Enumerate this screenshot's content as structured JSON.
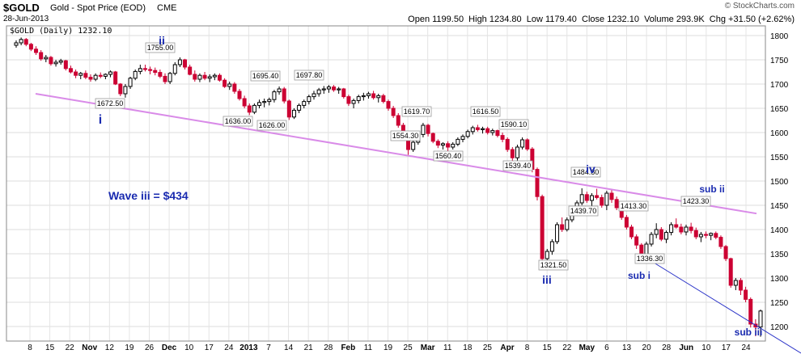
{
  "header": {
    "symbol": "$GOLD",
    "description": "Gold - Spot Price (EOD)",
    "exchange": "CME",
    "date": "28-Jun-2013",
    "ohlc_text": "Open 1199.50  High 1234.80  Low 1179.40  Close 1232.10  Volume 293.9K  Chg +31.50 (+2.62%)",
    "legend_text": "$GOLD (Daily) 1232.10",
    "watermark": "© StockCharts.com"
  },
  "colors": {
    "up": "#000000",
    "down": "#cc0033",
    "trendline": "#d98be8",
    "channel": "#2a33c8",
    "wave_label": "#1a2bb0"
  },
  "chart_data": {
    "type": "candlestick",
    "ylim": [
      1170,
      1820
    ],
    "y_ticks": [
      1200,
      1250,
      1300,
      1350,
      1400,
      1450,
      1500,
      1550,
      1600,
      1650,
      1700,
      1750,
      1800
    ],
    "x_labels": [
      "8",
      "15",
      "22",
      "Nov",
      "12",
      "19",
      "26",
      "Dec",
      "10",
      "17",
      "24",
      "2013",
      "7",
      "14",
      "21",
      "28",
      "Feb",
      "11",
      "19",
      "25",
      "Mar",
      "11",
      "18",
      "25",
      "Apr",
      "8",
      "15",
      "22",
      "May",
      "6",
      "13",
      "20",
      "28",
      "Jun",
      "10",
      "17",
      "24"
    ],
    "grid": true,
    "price_labels": [
      "1672.50",
      "1755.00",
      "1636.00",
      "1695.40",
      "1626.00",
      "1697.80",
      "1554.30",
      "1619.70",
      "1560.40",
      "1616.50",
      "1539.40",
      "1590.10",
      "1321.50",
      "1484.80",
      "1439.70",
      "1336.30",
      "1413.30",
      "1423.30"
    ],
    "wave_labels": [
      "i",
      "ii",
      "iii",
      "iv",
      "sub i",
      "sub ii",
      "sub iii"
    ],
    "annotation": "Wave iii = $434",
    "trendlines": [
      {
        "from": [
          "Oct 8",
          1680
        ],
        "to": [
          "Jun 28",
          1433
        ]
      },
      {
        "from": [
          "May 20",
          1340
        ],
        "to": [
          "Jun 28",
          1175
        ]
      }
    ],
    "candles": [
      [
        1780,
        1790,
        1775,
        1785
      ],
      [
        1785,
        1796,
        1780,
        1792
      ],
      [
        1792,
        1795,
        1778,
        1782
      ],
      [
        1782,
        1785,
        1768,
        1772
      ],
      [
        1772,
        1778,
        1760,
        1765
      ],
      [
        1765,
        1770,
        1748,
        1752
      ],
      [
        1752,
        1760,
        1745,
        1755
      ],
      [
        1755,
        1758,
        1738,
        1742
      ],
      [
        1742,
        1750,
        1736,
        1745
      ],
      [
        1745,
        1752,
        1740,
        1748
      ],
      [
        1748,
        1750,
        1728,
        1732
      ],
      [
        1732,
        1738,
        1722,
        1725
      ],
      [
        1725,
        1730,
        1712,
        1718
      ],
      [
        1718,
        1725,
        1710,
        1722
      ],
      [
        1722,
        1728,
        1710,
        1714
      ],
      [
        1714,
        1720,
        1705,
        1710
      ],
      [
        1710,
        1722,
        1706,
        1718
      ],
      [
        1718,
        1724,
        1712,
        1716
      ],
      [
        1716,
        1722,
        1710,
        1720
      ],
      [
        1720,
        1728,
        1714,
        1725
      ],
      [
        1725,
        1727,
        1698,
        1700
      ],
      [
        1700,
        1702,
        1675,
        1680
      ],
      [
        1680,
        1700,
        1672,
        1695
      ],
      [
        1695,
        1715,
        1690,
        1712
      ],
      [
        1712,
        1730,
        1708,
        1726
      ],
      [
        1726,
        1740,
        1720,
        1732
      ],
      [
        1732,
        1740,
        1726,
        1730
      ],
      [
        1730,
        1736,
        1720,
        1728
      ],
      [
        1728,
        1734,
        1718,
        1724
      ],
      [
        1724,
        1730,
        1712,
        1716
      ],
      [
        1716,
        1722,
        1700,
        1705
      ],
      [
        1705,
        1725,
        1700,
        1722
      ],
      [
        1722,
        1745,
        1718,
        1740
      ],
      [
        1740,
        1755,
        1735,
        1750
      ],
      [
        1750,
        1752,
        1730,
        1735
      ],
      [
        1735,
        1740,
        1718,
        1720
      ],
      [
        1720,
        1728,
        1705,
        1710
      ],
      [
        1710,
        1722,
        1704,
        1718
      ],
      [
        1718,
        1725,
        1708,
        1712
      ],
      [
        1712,
        1720,
        1704,
        1715
      ],
      [
        1715,
        1722,
        1708,
        1718
      ],
      [
        1718,
        1722,
        1705,
        1708
      ],
      [
        1708,
        1712,
        1692,
        1695
      ],
      [
        1695,
        1705,
        1688,
        1700
      ],
      [
        1700,
        1704,
        1680,
        1685
      ],
      [
        1685,
        1690,
        1666,
        1670
      ],
      [
        1670,
        1676,
        1650,
        1655
      ],
      [
        1655,
        1660,
        1636,
        1642
      ],
      [
        1642,
        1660,
        1638,
        1656
      ],
      [
        1656,
        1668,
        1650,
        1662
      ],
      [
        1662,
        1670,
        1652,
        1664
      ],
      [
        1664,
        1672,
        1656,
        1668
      ],
      [
        1668,
        1688,
        1662,
        1684
      ],
      [
        1684,
        1695,
        1678,
        1690
      ],
      [
        1690,
        1694,
        1660,
        1665
      ],
      [
        1665,
        1668,
        1626,
        1632
      ],
      [
        1632,
        1650,
        1628,
        1646
      ],
      [
        1646,
        1660,
        1640,
        1656
      ],
      [
        1656,
        1668,
        1650,
        1664
      ],
      [
        1664,
        1678,
        1658,
        1674
      ],
      [
        1674,
        1686,
        1668,
        1680
      ],
      [
        1680,
        1692,
        1674,
        1688
      ],
      [
        1688,
        1696,
        1680,
        1690
      ],
      [
        1690,
        1698,
        1682,
        1694
      ],
      [
        1694,
        1698,
        1684,
        1688
      ],
      [
        1688,
        1694,
        1680,
        1690
      ],
      [
        1690,
        1692,
        1670,
        1674
      ],
      [
        1674,
        1678,
        1655,
        1660
      ],
      [
        1660,
        1670,
        1650,
        1666
      ],
      [
        1666,
        1678,
        1660,
        1674
      ],
      [
        1674,
        1682,
        1666,
        1676
      ],
      [
        1676,
        1684,
        1670,
        1680
      ],
      [
        1680,
        1686,
        1668,
        1672
      ],
      [
        1672,
        1680,
        1662,
        1676
      ],
      [
        1676,
        1680,
        1660,
        1664
      ],
      [
        1664,
        1668,
        1645,
        1650
      ],
      [
        1650,
        1655,
        1630,
        1635
      ],
      [
        1635,
        1640,
        1610,
        1615
      ],
      [
        1615,
        1620,
        1590,
        1595
      ],
      [
        1595,
        1598,
        1554,
        1565
      ],
      [
        1565,
        1585,
        1560,
        1580
      ],
      [
        1580,
        1600,
        1575,
        1596
      ],
      [
        1596,
        1620,
        1590,
        1615
      ],
      [
        1615,
        1618,
        1592,
        1598
      ],
      [
        1598,
        1600,
        1578,
        1582
      ],
      [
        1582,
        1586,
        1568,
        1574
      ],
      [
        1574,
        1580,
        1565,
        1577
      ],
      [
        1577,
        1582,
        1560,
        1570
      ],
      [
        1570,
        1580,
        1565,
        1576
      ],
      [
        1576,
        1590,
        1572,
        1586
      ],
      [
        1586,
        1596,
        1580,
        1592
      ],
      [
        1592,
        1606,
        1588,
        1602
      ],
      [
        1602,
        1614,
        1596,
        1610
      ],
      [
        1610,
        1616,
        1602,
        1606
      ],
      [
        1606,
        1612,
        1598,
        1608
      ],
      [
        1608,
        1612,
        1596,
        1600
      ],
      [
        1600,
        1608,
        1594,
        1604
      ],
      [
        1604,
        1606,
        1590,
        1594
      ],
      [
        1594,
        1600,
        1580,
        1586
      ],
      [
        1586,
        1590,
        1560,
        1565
      ],
      [
        1565,
        1570,
        1540,
        1548
      ],
      [
        1548,
        1575,
        1542,
        1570
      ],
      [
        1570,
        1590,
        1565,
        1585
      ],
      [
        1585,
        1588,
        1562,
        1566
      ],
      [
        1566,
        1570,
        1518,
        1524
      ],
      [
        1524,
        1528,
        1460,
        1468
      ],
      [
        1468,
        1472,
        1330,
        1340
      ],
      [
        1340,
        1360,
        1321,
        1355
      ],
      [
        1355,
        1380,
        1348,
        1375
      ],
      [
        1375,
        1415,
        1370,
        1410
      ],
      [
        1410,
        1425,
        1395,
        1400
      ],
      [
        1400,
        1425,
        1396,
        1420
      ],
      [
        1420,
        1440,
        1415,
        1435
      ],
      [
        1435,
        1460,
        1430,
        1455
      ],
      [
        1455,
        1485,
        1450,
        1472
      ],
      [
        1472,
        1478,
        1455,
        1460
      ],
      [
        1460,
        1475,
        1448,
        1470
      ],
      [
        1470,
        1484,
        1462,
        1466
      ],
      [
        1466,
        1472,
        1445,
        1450
      ],
      [
        1450,
        1480,
        1440,
        1475
      ],
      [
        1475,
        1482,
        1455,
        1462
      ],
      [
        1462,
        1468,
        1440,
        1445
      ],
      [
        1445,
        1450,
        1420,
        1425
      ],
      [
        1425,
        1430,
        1400,
        1405
      ],
      [
        1405,
        1410,
        1380,
        1385
      ],
      [
        1385,
        1390,
        1360,
        1368
      ],
      [
        1368,
        1372,
        1336,
        1345
      ],
      [
        1345,
        1375,
        1340,
        1370
      ],
      [
        1370,
        1395,
        1365,
        1390
      ],
      [
        1390,
        1413,
        1382,
        1400
      ],
      [
        1400,
        1405,
        1376,
        1380
      ],
      [
        1380,
        1398,
        1372,
        1394
      ],
      [
        1394,
        1415,
        1388,
        1410
      ],
      [
        1410,
        1423,
        1402,
        1405
      ],
      [
        1405,
        1412,
        1390,
        1395
      ],
      [
        1395,
        1410,
        1388,
        1405
      ],
      [
        1405,
        1414,
        1392,
        1398
      ],
      [
        1398,
        1404,
        1380,
        1385
      ],
      [
        1385,
        1395,
        1374,
        1390
      ],
      [
        1390,
        1396,
        1382,
        1388
      ],
      [
        1388,
        1394,
        1378,
        1392
      ],
      [
        1392,
        1396,
        1380,
        1384
      ],
      [
        1384,
        1388,
        1360,
        1365
      ],
      [
        1365,
        1368,
        1335,
        1340
      ],
      [
        1340,
        1342,
        1280,
        1285
      ],
      [
        1285,
        1300,
        1275,
        1295
      ],
      [
        1295,
        1300,
        1265,
        1275
      ],
      [
        1275,
        1282,
        1250,
        1256
      ],
      [
        1256,
        1260,
        1198,
        1205
      ],
      [
        1205,
        1215,
        1180,
        1199
      ],
      [
        1199,
        1235,
        1179,
        1232
      ]
    ]
  }
}
